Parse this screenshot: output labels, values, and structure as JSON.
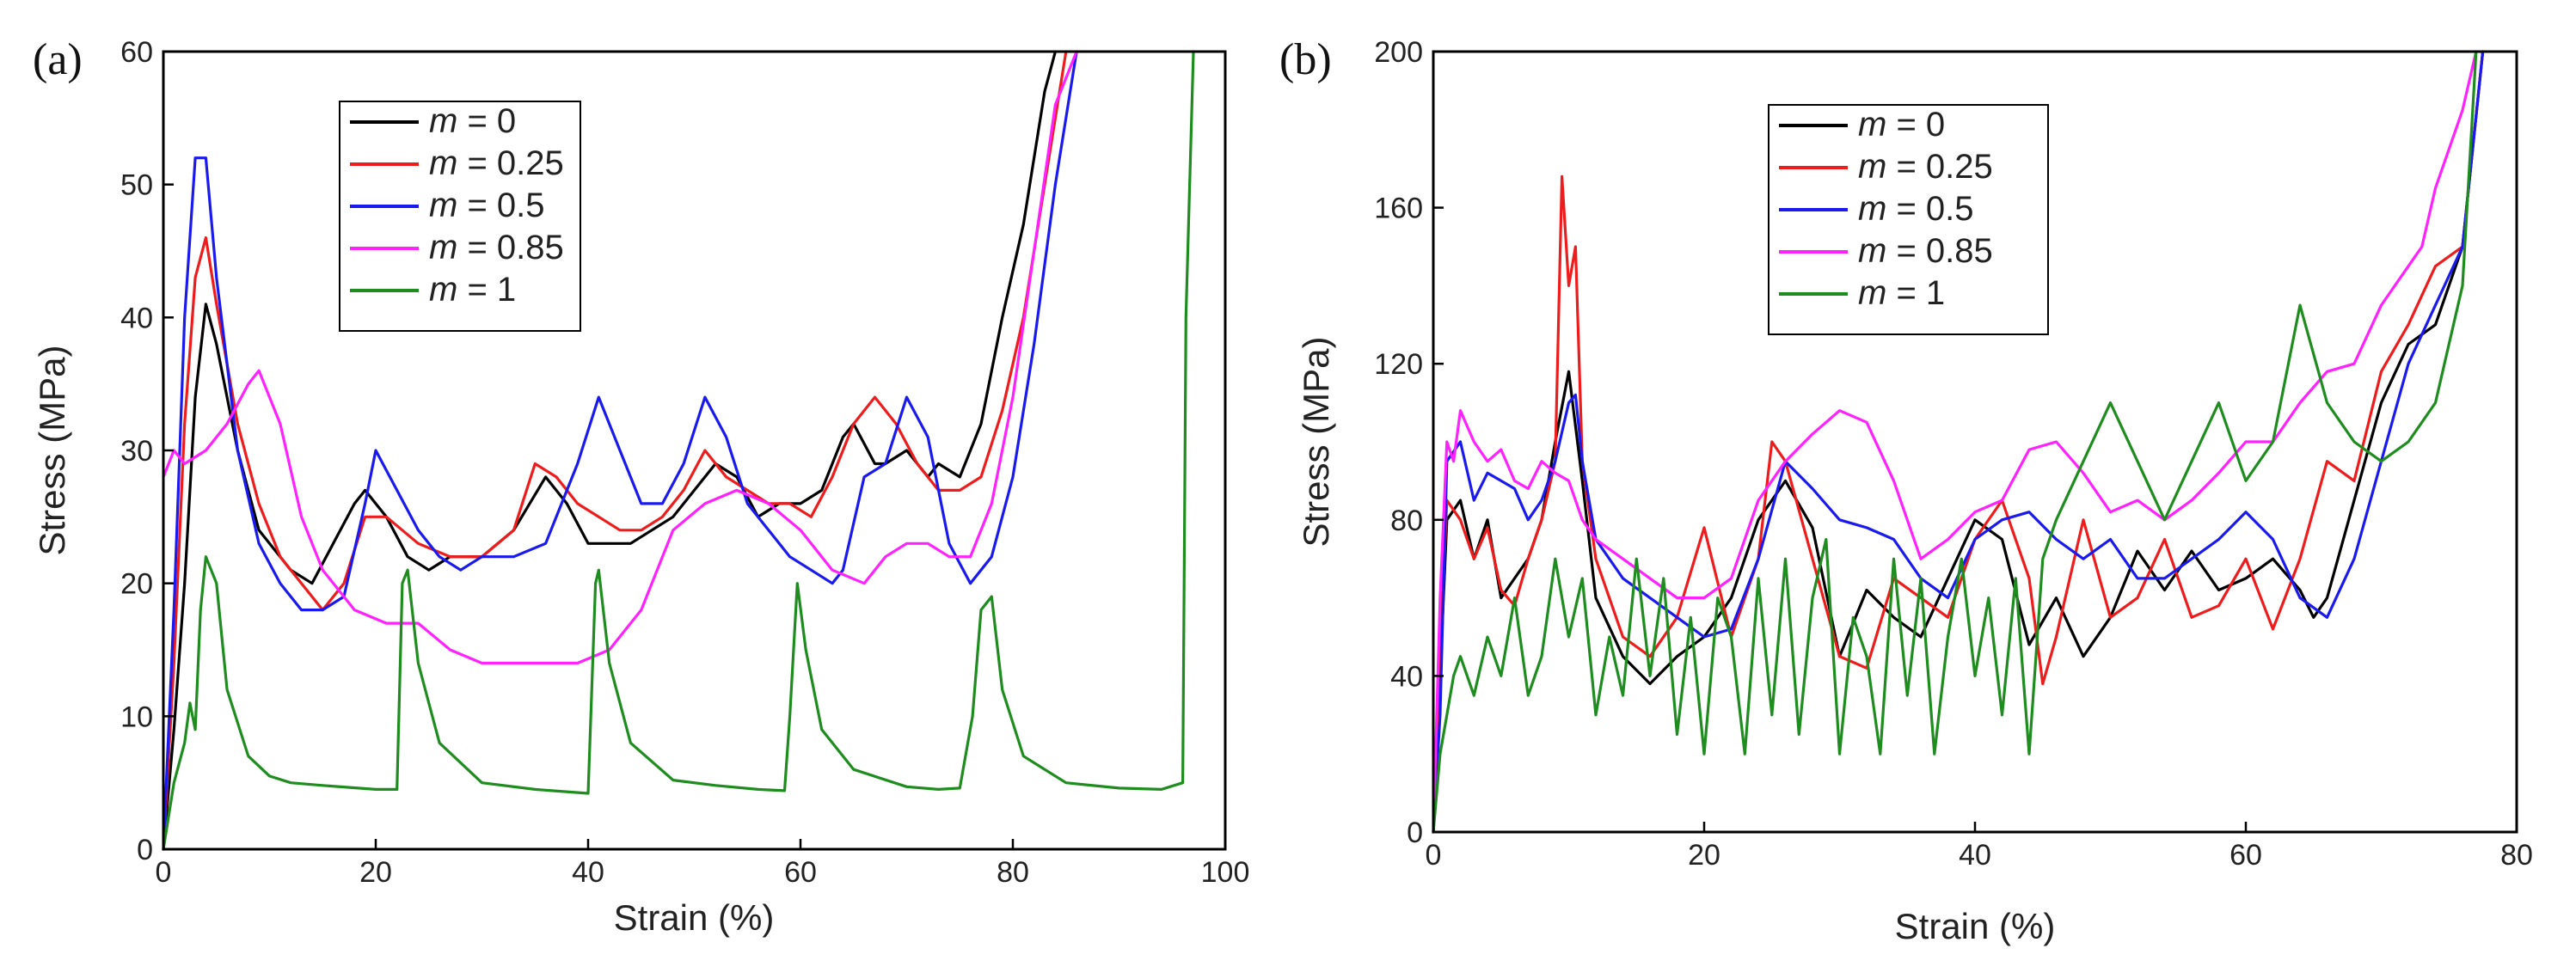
{
  "chart_data": [
    {
      "panel": "(a)",
      "type": "line",
      "xlabel": "Strain (%)",
      "ylabel": "Stress (MPa)",
      "xlim": [
        0,
        100
      ],
      "ylim": [
        0,
        60
      ],
      "xticks": [
        0,
        20,
        40,
        60,
        80,
        100
      ],
      "yticks": [
        0,
        10,
        20,
        30,
        40,
        50,
        60
      ],
      "legend_position": "top-left",
      "grid": false,
      "series": [
        {
          "name": "m = 0",
          "m_var": "m",
          "m_value": "= 0",
          "color": "#000000",
          "x": [
            0,
            1,
            2,
            3,
            4,
            5,
            7,
            9,
            12,
            14,
            16,
            18,
            19,
            21,
            23,
            25,
            27,
            30,
            33,
            36,
            38,
            40,
            42,
            44,
            46,
            48,
            50,
            52,
            54,
            56,
            58,
            60,
            62,
            64,
            65,
            67,
            68,
            70,
            72,
            73,
            75,
            77,
            79,
            81,
            83,
            84
          ],
          "y": [
            0,
            9,
            20,
            34,
            41,
            38,
            30,
            24,
            21,
            20,
            23,
            26,
            27,
            25,
            22,
            21,
            22,
            22,
            24,
            28,
            26,
            23,
            23,
            23,
            24,
            25,
            27,
            29,
            28,
            25,
            26,
            26,
            27,
            31,
            32,
            29,
            29,
            30,
            28,
            29,
            28,
            32,
            40,
            47,
            57,
            60
          ]
        },
        {
          "name": "m = 0.25",
          "m_var": "m",
          "m_value": "= 0.25",
          "color": "#ee1c1c",
          "x": [
            0,
            1,
            2,
            3,
            4,
            5,
            7,
            9,
            11,
            13,
            15,
            17,
            19,
            21,
            24,
            27,
            30,
            33,
            35,
            37,
            39,
            41,
            43,
            45,
            47,
            49,
            51,
            53,
            55,
            57,
            59,
            61,
            63,
            65,
            67,
            69,
            71,
            73,
            75,
            77,
            79,
            81,
            83,
            85
          ],
          "y": [
            0,
            14,
            32,
            43,
            46,
            41,
            32,
            26,
            22,
            20,
            18,
            20,
            25,
            25,
            23,
            22,
            22,
            24,
            29,
            28,
            26,
            25,
            24,
            24,
            25,
            27,
            30,
            28,
            27,
            26,
            26,
            25,
            28,
            32,
            34,
            32,
            29,
            27,
            27,
            28,
            33,
            40,
            50,
            60
          ]
        },
        {
          "name": "m = 0.5",
          "m_var": "m",
          "m_value": "= 0.5",
          "color": "#1a1aee",
          "x": [
            0,
            1,
            2,
            3,
            4,
            5,
            7,
            9,
            11,
            13,
            15,
            17,
            19,
            20,
            22,
            24,
            26,
            28,
            30,
            33,
            36,
            39,
            41,
            43,
            45,
            47,
            49,
            51,
            53,
            55,
            57,
            59,
            61,
            63,
            64,
            66,
            68,
            70,
            72,
            74,
            76,
            78,
            80,
            82,
            84,
            86
          ],
          "y": [
            0,
            18,
            40,
            52,
            52,
            43,
            30,
            23,
            20,
            18,
            18,
            19,
            26,
            30,
            27,
            24,
            22,
            21,
            22,
            22,
            23,
            29,
            34,
            30,
            26,
            26,
            29,
            34,
            31,
            26,
            24,
            22,
            21,
            20,
            21,
            28,
            29,
            34,
            31,
            23,
            20,
            22,
            28,
            38,
            50,
            60
          ]
        },
        {
          "name": "m = 0.85",
          "m_var": "m",
          "m_value": "= 0.85",
          "color": "#ff22ff",
          "x": [
            0,
            1,
            2,
            4,
            6,
            8,
            9,
            11,
            13,
            15,
            18,
            21,
            24,
            27,
            30,
            33,
            36,
            39,
            42,
            45,
            48,
            51,
            54,
            57,
            60,
            63,
            66,
            68,
            70,
            72,
            74,
            76,
            78,
            80,
            82,
            84,
            86
          ],
          "y": [
            28,
            30,
            29,
            30,
            32,
            35,
            36,
            32,
            25,
            21,
            18,
            17,
            17,
            15,
            14,
            14,
            14,
            14,
            15,
            18,
            24,
            26,
            27,
            26,
            24,
            21,
            20,
            22,
            23,
            23,
            22,
            22,
            26,
            34,
            45,
            56,
            60
          ]
        },
        {
          "name": "m = 1",
          "m_var": "m",
          "m_value": "= 1",
          "color": "#1f8c1f",
          "x": [
            0,
            1,
            2,
            2.5,
            3,
            3.5,
            4,
            5,
            6,
            8,
            10,
            12,
            15,
            20,
            22,
            22.5,
            23,
            24,
            26,
            30,
            35,
            40,
            40.7,
            41,
            42,
            44,
            48,
            52,
            56,
            58.5,
            59,
            59.7,
            60.5,
            62,
            65,
            70,
            73,
            75,
            76.2,
            77,
            78,
            79,
            81,
            85,
            90,
            94,
            96,
            96.3,
            97
          ],
          "y": [
            0,
            5,
            8,
            11,
            9,
            18,
            22,
            20,
            12,
            7,
            5.5,
            5,
            4.8,
            4.5,
            4.5,
            20,
            21,
            14,
            8,
            5,
            4.5,
            4.2,
            20,
            21,
            14,
            8,
            5.2,
            4.8,
            4.5,
            4.4,
            10,
            20,
            15,
            9,
            6,
            4.7,
            4.5,
            4.6,
            10,
            18,
            19,
            12,
            7,
            5,
            4.6,
            4.5,
            5,
            40,
            60
          ]
        }
      ]
    },
    {
      "panel": "(b)",
      "type": "line",
      "xlabel": "Strain (%)",
      "ylabel": "Stress (MPa)",
      "xlim": [
        0,
        80
      ],
      "ylim": [
        0,
        200
      ],
      "xticks": [
        0,
        20,
        40,
        60,
        80
      ],
      "yticks": [
        0,
        40,
        80,
        120,
        160,
        200
      ],
      "legend_position": "top-center",
      "grid": false,
      "series": [
        {
          "name": "m = 0",
          "m_var": "m",
          "m_value": "= 0",
          "color": "#000000",
          "x": [
            0,
            0.5,
            1,
            2,
            3,
            4,
            5,
            6,
            7,
            8,
            9,
            10,
            11,
            12,
            14,
            16,
            18,
            20,
            22,
            24,
            26,
            28,
            30,
            32,
            34,
            36,
            38,
            40,
            42,
            44,
            46,
            48,
            50,
            52,
            54,
            56,
            58,
            60,
            62,
            64,
            65,
            66,
            68,
            70,
            72,
            74,
            76,
            77.5
          ],
          "y": [
            0,
            40,
            80,
            85,
            70,
            80,
            60,
            65,
            70,
            80,
            100,
            118,
            90,
            60,
            45,
            38,
            45,
            50,
            60,
            80,
            90,
            78,
            45,
            62,
            55,
            50,
            65,
            80,
            75,
            48,
            60,
            45,
            55,
            72,
            62,
            72,
            62,
            65,
            70,
            62,
            55,
            60,
            85,
            110,
            125,
            130,
            150,
            200
          ]
        },
        {
          "name": "m = 0.25",
          "m_var": "m",
          "m_value": "= 0.25",
          "color": "#ee1c1c",
          "x": [
            0,
            0.5,
            1,
            2,
            3,
            4,
            5,
            6,
            7,
            8,
            9,
            9.5,
            10,
            10.5,
            11,
            12,
            14,
            16,
            18,
            20,
            22,
            24,
            25,
            26,
            28,
            30,
            32,
            34,
            36,
            38,
            40,
            42,
            44,
            45,
            46,
            48,
            50,
            52,
            54,
            56,
            58,
            60,
            62,
            64,
            66,
            68,
            70,
            72,
            74,
            76,
            77.5
          ],
          "y": [
            0,
            45,
            85,
            80,
            70,
            78,
            62,
            58,
            70,
            80,
            95,
            168,
            140,
            150,
            95,
            70,
            50,
            45,
            55,
            78,
            50,
            70,
            100,
            95,
            70,
            45,
            42,
            65,
            60,
            55,
            75,
            85,
            65,
            38,
            50,
            80,
            55,
            60,
            75,
            55,
            58,
            70,
            52,
            70,
            95,
            90,
            118,
            130,
            145,
            150,
            200
          ]
        },
        {
          "name": "m = 0.5",
          "m_var": "m",
          "m_value": "= 0.5",
          "color": "#1a1aee",
          "x": [
            0,
            0.5,
            1,
            2,
            3,
            4,
            5,
            6,
            7,
            8,
            9,
            10,
            10.5,
            11,
            12,
            14,
            16,
            18,
            20,
            22,
            24,
            26,
            28,
            30,
            32,
            34,
            36,
            38,
            40,
            42,
            44,
            46,
            48,
            50,
            52,
            54,
            56,
            58,
            60,
            62,
            64,
            66,
            68,
            70,
            72,
            74,
            76,
            77.5
          ],
          "y": [
            0,
            30,
            95,
            100,
            85,
            92,
            90,
            88,
            80,
            85,
            95,
            110,
            112,
            95,
            75,
            65,
            60,
            55,
            50,
            52,
            70,
            95,
            88,
            80,
            78,
            75,
            65,
            60,
            75,
            80,
            82,
            75,
            70,
            75,
            65,
            65,
            70,
            75,
            82,
            75,
            60,
            55,
            70,
            95,
            120,
            135,
            150,
            200
          ]
        },
        {
          "name": "m = 0.85",
          "m_var": "m",
          "m_value": "= 0.85",
          "color": "#ff22ff",
          "x": [
            0,
            0.5,
            1,
            1.5,
            2,
            3,
            4,
            5,
            6,
            7,
            8,
            9,
            10,
            11,
            12,
            14,
            16,
            18,
            20,
            22,
            24,
            26,
            28,
            30,
            32,
            34,
            36,
            38,
            40,
            42,
            44,
            46,
            48,
            50,
            52,
            54,
            56,
            58,
            60,
            62,
            64,
            66,
            68,
            70,
            72,
            73,
            74,
            75,
            76,
            77
          ],
          "y": [
            0,
            60,
            100,
            95,
            108,
            100,
            95,
            98,
            90,
            88,
            95,
            92,
            90,
            80,
            75,
            70,
            65,
            60,
            60,
            65,
            85,
            95,
            102,
            108,
            105,
            90,
            70,
            75,
            82,
            85,
            98,
            100,
            92,
            82,
            85,
            80,
            85,
            92,
            100,
            100,
            110,
            118,
            120,
            135,
            145,
            150,
            165,
            175,
            185,
            200
          ]
        },
        {
          "name": "m = 1",
          "m_var": "m",
          "m_value": "= 1",
          "color": "#1f8c1f",
          "x": [
            0,
            0.5,
            1,
            1.5,
            2,
            3,
            4,
            5,
            6,
            7,
            8,
            9,
            10,
            11,
            12,
            13,
            14,
            15,
            16,
            17,
            18,
            19,
            20,
            21,
            22,
            23,
            24,
            25,
            26,
            27,
            28,
            29,
            30,
            31,
            32,
            33,
            34,
            35,
            36,
            37,
            38,
            39,
            40,
            41,
            42,
            43,
            44,
            45,
            46,
            48,
            50,
            52,
            54,
            56,
            58,
            60,
            62,
            64,
            66,
            68,
            70,
            72,
            74,
            76,
            77
          ],
          "y": [
            0,
            20,
            30,
            40,
            45,
            35,
            50,
            40,
            60,
            35,
            45,
            70,
            50,
            65,
            30,
            50,
            35,
            70,
            40,
            65,
            25,
            55,
            20,
            60,
            50,
            20,
            65,
            30,
            70,
            25,
            60,
            75,
            20,
            55,
            45,
            20,
            70,
            35,
            65,
            20,
            50,
            70,
            40,
            60,
            30,
            65,
            20,
            70,
            80,
            95,
            110,
            95,
            80,
            95,
            110,
            90,
            100,
            135,
            110,
            100,
            95,
            100,
            110,
            140,
            200
          ]
        }
      ]
    }
  ]
}
